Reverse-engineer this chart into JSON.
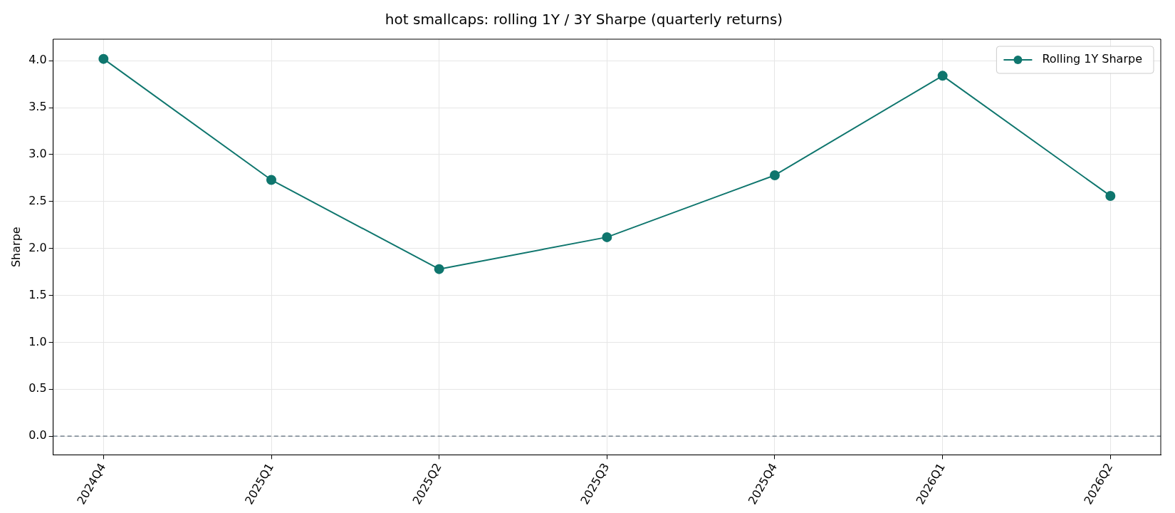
{
  "chart_data": {
    "type": "line",
    "title": "hot smallcaps: rolling 1Y / 3Y Sharpe (quarterly returns)",
    "ylabel": "Sharpe",
    "categories": [
      "2024Q4",
      "2025Q1",
      "2025Q2",
      "2025Q3",
      "2025Q4",
      "2026Q1",
      "2026Q2"
    ],
    "series": [
      {
        "name": "Rolling 1Y Sharpe",
        "color": "#0f766e",
        "values": [
          4.02,
          2.73,
          1.78,
          2.12,
          2.78,
          3.84,
          2.56
        ]
      }
    ],
    "ylim": [
      -0.2,
      4.23
    ],
    "yticks": [
      {
        "value": 0,
        "label": "0.0"
      },
      {
        "value": 0.5,
        "label": "0.5"
      },
      {
        "value": 1,
        "label": "1.0"
      },
      {
        "value": 1.5,
        "label": "1.5"
      },
      {
        "value": 2,
        "label": "2.0"
      },
      {
        "value": 2.5,
        "label": "2.5"
      },
      {
        "value": 3,
        "label": "3.0"
      },
      {
        "value": 3.5,
        "label": "3.5"
      },
      {
        "value": 4,
        "label": "4.0"
      }
    ],
    "ref_lines": [
      {
        "axis": "y",
        "value": 0,
        "label": null,
        "color": "#5b6b7b",
        "line_style": "dashed"
      }
    ],
    "grid": true,
    "legend": "top right",
    "marker": "circle",
    "line_style": "solid"
  }
}
